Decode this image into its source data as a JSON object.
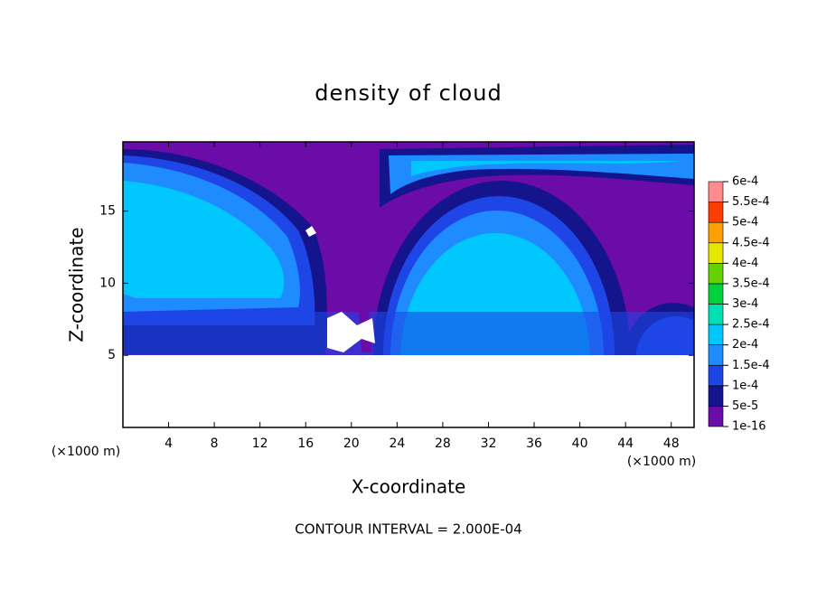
{
  "chart_data": {
    "type": "contour",
    "title": "density of cloud",
    "xlabel": "X-coordinate",
    "ylabel": "Z-coordinate",
    "x_unit_label": "(×1000 m)",
    "y_unit_label": "(×1000 m)",
    "footnote": "CONTOUR INTERVAL = 2.000E-04",
    "xlim": [
      0,
      50
    ],
    "ylim": [
      0,
      19.8
    ],
    "xticks": [
      4,
      8,
      12,
      16,
      20,
      24,
      28,
      32,
      36,
      40,
      44,
      48
    ],
    "yticks": [
      5,
      10,
      15
    ],
    "colorbar": {
      "levels": [
        {
          "value": 1e-16,
          "label": "1e-16"
        },
        {
          "value": 5e-05,
          "label": "5e-5"
        },
        {
          "value": 0.0001,
          "label": "1e-4"
        },
        {
          "value": 0.00015,
          "label": "1.5e-4"
        },
        {
          "value": 0.0002,
          "label": "2e-4"
        },
        {
          "value": 0.00025,
          "label": "2.5e-4"
        },
        {
          "value": 0.0003,
          "label": "3e-4"
        },
        {
          "value": 0.00035,
          "label": "3.5e-4"
        },
        {
          "value": 0.0004,
          "label": "4e-4"
        },
        {
          "value": 0.00045,
          "label": "4.5e-4"
        },
        {
          "value": 0.0005,
          "label": "5e-4"
        },
        {
          "value": 0.00055,
          "label": "5.5e-4"
        },
        {
          "value": 0.0006,
          "label": "6e-4"
        }
      ],
      "colors": [
        "#6b0ba8",
        "#14148c",
        "#1e46e6",
        "#1e8cff",
        "#00c8ff",
        "#00e0b4",
        "#00d23c",
        "#64d200",
        "#e6e600",
        "#ffa000",
        "#ff3c00",
        "#ff8c8c"
      ]
    }
  }
}
